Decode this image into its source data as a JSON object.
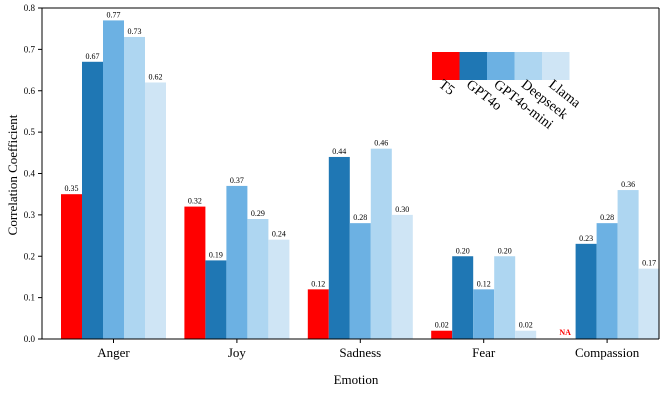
{
  "chart_data": {
    "type": "bar",
    "xlabel": "Emotion",
    "ylabel": "Correlation Coefficient",
    "ylim": [
      0,
      0.8
    ],
    "yticks": [
      "0.0",
      "0.1",
      "0.2",
      "0.3",
      "0.4",
      "0.5",
      "0.6",
      "0.7",
      "0.8"
    ],
    "categories": [
      "Anger",
      "Joy",
      "Sadness",
      "Fear",
      "Compassion"
    ],
    "legend_position": "upper-right",
    "grid": false,
    "series": [
      {
        "name": "T5",
        "color": "#ff0000",
        "values": [
          0.35,
          0.32,
          0.12,
          0.02,
          null
        ],
        "labels": [
          "0.35",
          "0.32",
          "0.12",
          "0.02",
          "NA"
        ]
      },
      {
        "name": "GPT4o",
        "color": "#1f77b4",
        "values": [
          0.67,
          0.19,
          0.44,
          0.2,
          0.23
        ],
        "labels": [
          "0.67",
          "0.19",
          "0.44",
          "0.20",
          "0.23"
        ]
      },
      {
        "name": "GPT4o-mini",
        "color": "#6cb1e3",
        "values": [
          0.77,
          0.37,
          0.28,
          0.12,
          0.28
        ],
        "labels": [
          "0.77",
          "0.37",
          "0.28",
          "0.12",
          "0.28"
        ]
      },
      {
        "name": "Deepseek",
        "color": "#aed6f1",
        "values": [
          0.73,
          0.29,
          0.46,
          0.2,
          0.36
        ],
        "labels": [
          "0.73",
          "0.29",
          "0.46",
          "0.20",
          "0.36"
        ]
      },
      {
        "name": "Llama",
        "color": "#cfe5f5",
        "values": [
          0.62,
          0.24,
          0.3,
          0.02,
          0.17
        ],
        "labels": [
          "0.62",
          "0.24",
          "0.30",
          "0.02",
          "0.17"
        ]
      }
    ]
  }
}
